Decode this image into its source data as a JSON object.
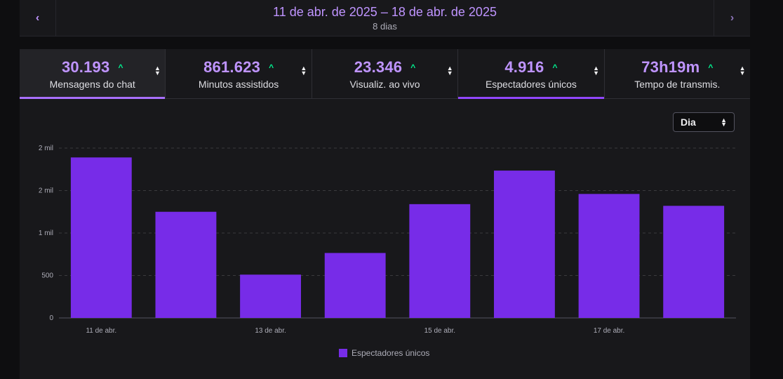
{
  "header": {
    "prev_icon": "chevron-left-icon",
    "next_icon": "chevron-right-icon",
    "range": "11 de abr. de 2025 – 18 de abr. de 2025",
    "days": "8 dias"
  },
  "tabs": [
    {
      "value": "30.193",
      "label": "Mensagens do chat",
      "trend": "up"
    },
    {
      "value": "861.623",
      "label": "Minutos assistidos",
      "trend": "up"
    },
    {
      "value": "23.346",
      "label": "Visualiz. ao vivo",
      "trend": "up"
    },
    {
      "value": "4.916",
      "label": "Espectadores únicos",
      "trend": "up"
    },
    {
      "value": "73h19m",
      "label": "Tempo de transmis.",
      "trend": "up"
    }
  ],
  "granularity_select": {
    "value": "Dia"
  },
  "colors": {
    "accent": "#bf94ff",
    "bar": "#772ce8",
    "trend_up": "#00f593"
  },
  "chart_data": {
    "type": "bar",
    "categories": [
      "11 de abr.",
      "12 de abr.",
      "13 de abr.",
      "14 de abr.",
      "15 de abr.",
      "16 de abr.",
      "17 de abr.",
      "18 de abr."
    ],
    "x_tick_labels_shown": [
      "11 de abr.",
      "",
      "13 de abr.",
      "",
      "15 de abr.",
      "",
      "17 de abr.",
      ""
    ],
    "y_tick_values": [
      0,
      500,
      1000,
      1500,
      2000
    ],
    "y_tick_labels": [
      "0",
      "500",
      "1 mil",
      "2 mil",
      "2 mil"
    ],
    "ylim": [
      0,
      2000
    ],
    "series": [
      {
        "name": "Espectadores únicos",
        "values": [
          1890,
          1250,
          510,
          765,
          1340,
          1735,
          1460,
          1320
        ]
      }
    ],
    "grid": true,
    "legend": "bottom"
  }
}
